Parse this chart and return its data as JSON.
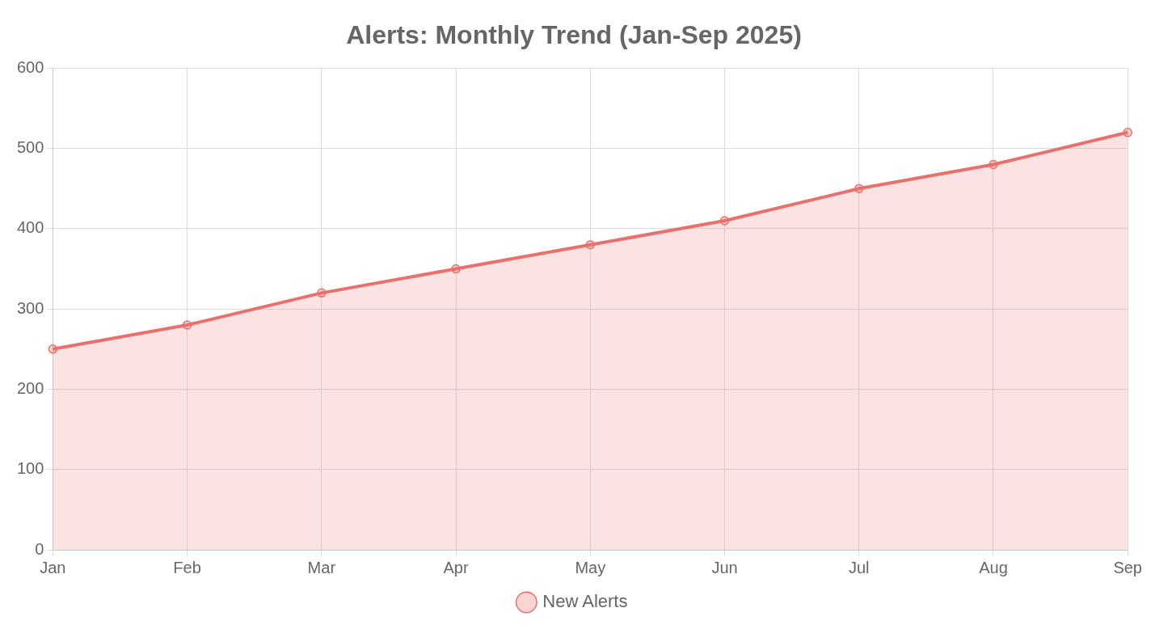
{
  "chart_data": {
    "type": "area",
    "title": "Alerts: Monthly Trend (Jan-Sep 2025)",
    "categories": [
      "Jan",
      "Feb",
      "Mar",
      "Apr",
      "May",
      "Jun",
      "Jul",
      "Aug",
      "Sep"
    ],
    "series": [
      {
        "name": "New Alerts",
        "color": "#e8716d",
        "values": [
          250,
          280,
          320,
          350,
          380,
          410,
          450,
          480,
          520
        ]
      }
    ],
    "ylim": [
      0,
      600
    ],
    "yticks": [
      0,
      100,
      200,
      300,
      400,
      500,
      600
    ],
    "grid": true,
    "legend": "bottom",
    "marker": "circle"
  }
}
